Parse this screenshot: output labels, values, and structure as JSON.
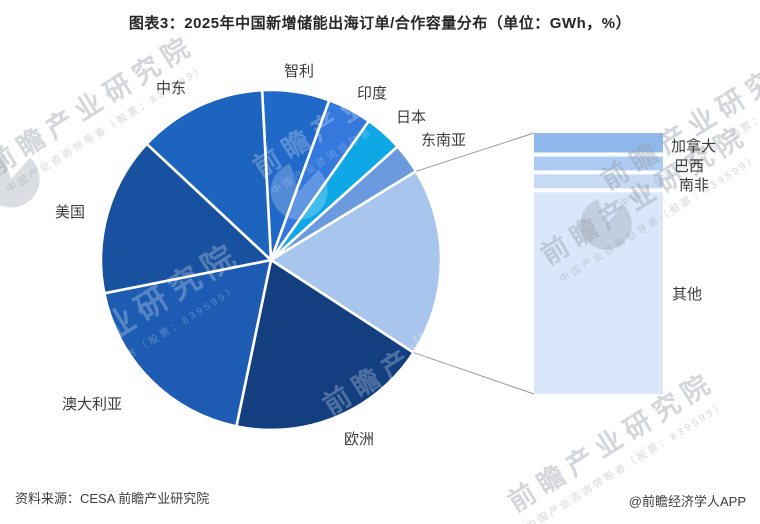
{
  "title": "图表3：2025年中国新增储能出海订单/合作容量分布（单位：GWh，%）",
  "footer": {
    "source": "资料来源：CESA 前瞻产业研究院",
    "credit": "@前瞻经济学人APP"
  },
  "watermark": {
    "big": "前瞻产业研究院",
    "small": "中国产业咨询领导者（股票：839599）"
  },
  "chart_data": {
    "type": "pie",
    "title": "2025年中国新增储能出海订单/合作容量分布",
    "unit_note": "单位：GWh，%",
    "legend_position": "none",
    "values_unit": "percent (estimated from slice angles, no numeric labels shown)",
    "slices": [
      {
        "id": "chile",
        "label": "智利",
        "value": 6.4,
        "color": "#2069C9"
      },
      {
        "id": "india",
        "label": "印度",
        "value": 4.2,
        "color": "#3579DD"
      },
      {
        "id": "japan",
        "label": "日本",
        "value": 3.6,
        "color": "#0FA8E6"
      },
      {
        "id": "southeast-asia",
        "label": "东南亚",
        "value": 2.9,
        "color": "#6B9BDE"
      },
      {
        "id": "breakout-group",
        "label": "",
        "value": 17.9,
        "color": "#A8C5EE",
        "breakout": true
      },
      {
        "id": "europe",
        "label": "欧洲",
        "value": 19.1,
        "color": "#133F81"
      },
      {
        "id": "australia",
        "label": "澳大利亚",
        "value": 18.6,
        "color": "#1D5CB2"
      },
      {
        "id": "usa",
        "label": "美国",
        "value": 15.1,
        "color": "#18519F"
      },
      {
        "id": "middle-east",
        "label": "中东",
        "value": 12.2,
        "color": "#1C64BD"
      }
    ],
    "breakout": {
      "type": "stacked-bar",
      "segments": [
        {
          "id": "canada",
          "label": "加拿大",
          "value": 1.4,
          "color": "#8FB9ED"
        },
        {
          "id": "brazil",
          "label": "巴西",
          "value": 1.0,
          "color": "#AECBF3"
        },
        {
          "id": "south-africa",
          "label": "南非",
          "value": 1.0,
          "color": "#C6DAF6"
        },
        {
          "id": "others",
          "label": "其他",
          "value": 14.5,
          "color": "#DAE7FA"
        }
      ]
    },
    "connector_color": "#999999",
    "slice_gap_color": "#ffffff"
  }
}
